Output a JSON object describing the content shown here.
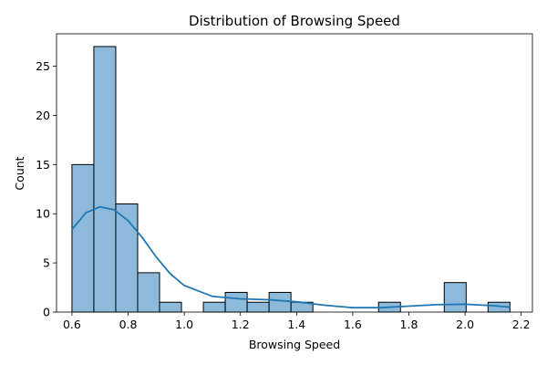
{
  "chart_data": {
    "type": "bar",
    "subtype": "histogram_with_kde",
    "title": "Distribution of Browsing Speed",
    "xlabel": "Browsing Speed",
    "ylabel": "Count",
    "xlim": [
      0.545,
      2.24
    ],
    "ylim": [
      0,
      28.3
    ],
    "xticks": [
      0.6,
      0.8,
      1.0,
      1.2,
      1.4,
      1.6,
      1.8,
      2.0,
      2.2
    ],
    "xtick_labels": [
      "0.6",
      "0.8",
      "1.0",
      "1.2",
      "1.4",
      "1.6",
      "1.8",
      "2.0",
      "2.2"
    ],
    "yticks": [
      0,
      5,
      10,
      15,
      20,
      25
    ],
    "ytick_labels": [
      "0",
      "5",
      "10",
      "15",
      "20",
      "25"
    ],
    "bins": {
      "start": 0.6,
      "width": 0.078,
      "counts": [
        15,
        27,
        11,
        4,
        1,
        0,
        1,
        2,
        1,
        2,
        1,
        0,
        0,
        0,
        1,
        0,
        0,
        3,
        0,
        1
      ]
    },
    "kde": {
      "x": [
        0.6,
        0.65,
        0.7,
        0.75,
        0.8,
        0.85,
        0.9,
        0.95,
        1.0,
        1.1,
        1.2,
        1.3,
        1.4,
        1.5,
        1.6,
        1.7,
        1.8,
        1.9,
        2.0,
        2.1,
        2.16
      ],
      "y": [
        8.4,
        10.1,
        10.7,
        10.4,
        9.3,
        7.6,
        5.6,
        3.9,
        2.7,
        1.6,
        1.35,
        1.25,
        1.05,
        0.7,
        0.45,
        0.45,
        0.6,
        0.75,
        0.8,
        0.65,
        0.5
      ]
    },
    "grid": false,
    "legend": "none",
    "colors": {
      "bar_fill": "#8dbadb",
      "bar_edge": "#000000",
      "kde_line": "#1f77b4"
    }
  }
}
